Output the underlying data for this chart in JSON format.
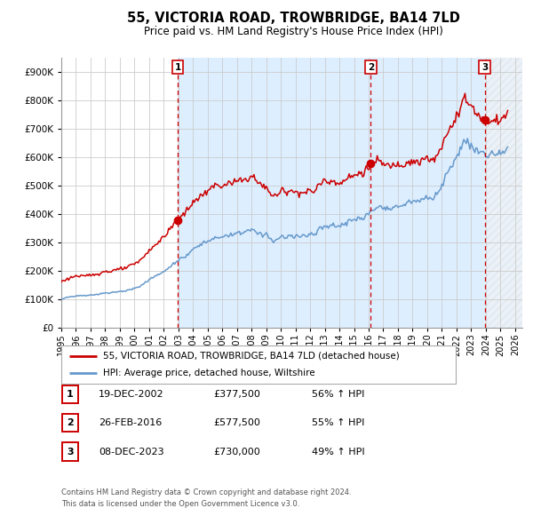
{
  "title1": "55, VICTORIA ROAD, TROWBRIDGE, BA14 7LD",
  "title2": "Price paid vs. HM Land Registry's House Price Index (HPI)",
  "legend_line1": "55, VICTORIA ROAD, TROWBRIDGE, BA14 7LD (detached house)",
  "legend_line2": "HPI: Average price, detached house, Wiltshire",
  "transactions": [
    {
      "label": "1",
      "date": "19-DEC-2002",
      "price": 377500,
      "pct": "56%",
      "direction": "↑",
      "x_year": 2002.96
    },
    {
      "label": "2",
      "date": "26-FEB-2016",
      "price": 577500,
      "pct": "55%",
      "direction": "↑",
      "x_year": 2016.15
    },
    {
      "label": "3",
      "date": "08-DEC-2023",
      "price": 730000,
      "pct": "49%",
      "direction": "↑",
      "x_year": 2023.93
    }
  ],
  "footnote1": "Contains HM Land Registry data © Crown copyright and database right 2024.",
  "footnote2": "This data is licensed under the Open Government Licence v3.0.",
  "red_color": "#cc0000",
  "blue_color": "#6699cc",
  "bg_highlight": "#ddeeff",
  "bg_hatch": "#e0e8f0",
  "grid_color": "#cccccc",
  "ylim": [
    0,
    950000
  ],
  "xlim_start": 1995.0,
  "xlim_end": 2026.5
}
